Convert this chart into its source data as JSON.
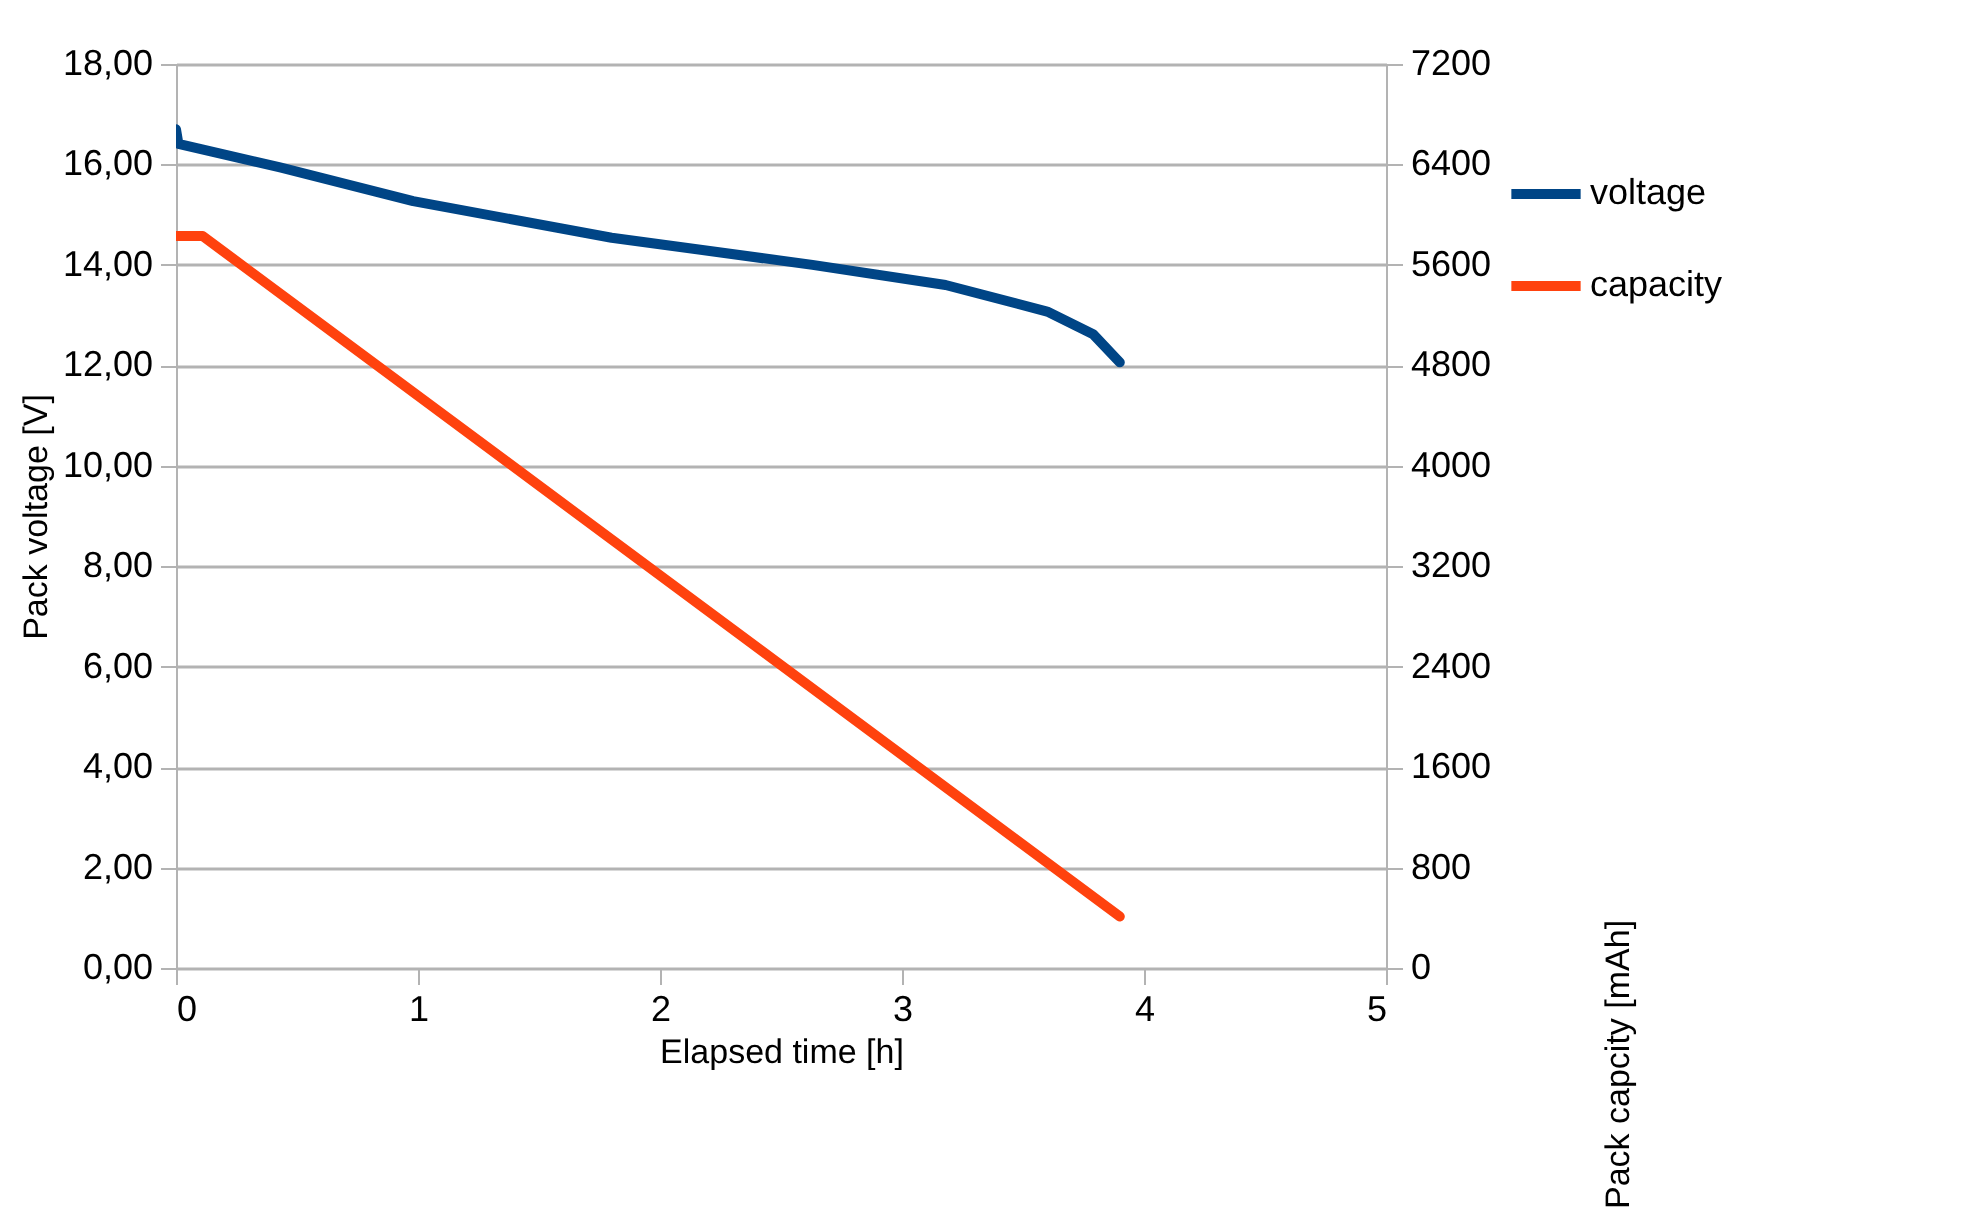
{
  "chart_data": {
    "type": "line",
    "xlabel": "Elapsed time [h]",
    "ylabel": "Pack voltage [V]",
    "y2label": "Pack capcity [mAh]",
    "xlim": [
      0,
      5
    ],
    "xticks": [
      0,
      1,
      2,
      3,
      4,
      5
    ],
    "ylim": [
      0,
      18
    ],
    "yticks": [
      {
        "value": 0,
        "label": "0,00"
      },
      {
        "value": 2,
        "label": "2,00"
      },
      {
        "value": 4,
        "label": "4,00"
      },
      {
        "value": 6,
        "label": "6,00"
      },
      {
        "value": 8,
        "label": "8,00"
      },
      {
        "value": 10,
        "label": "10,00"
      },
      {
        "value": 12,
        "label": "12,00"
      },
      {
        "value": 14,
        "label": "14,00"
      },
      {
        "value": 16,
        "label": "16,00"
      },
      {
        "value": 18,
        "label": "18,00"
      }
    ],
    "y2lim": [
      0,
      7200
    ],
    "y2ticks": [
      0,
      800,
      1600,
      2400,
      3200,
      4000,
      4800,
      5600,
      6400,
      7200
    ],
    "grid": "y",
    "legend": "right",
    "marker": "none",
    "line_style": "solid",
    "series": [
      {
        "name": "voltage",
        "color": "#004586",
        "x": [
          0,
          0.01,
          0.43,
          0.98,
          1.8,
          2.63,
          3.18,
          3.6,
          3.79,
          3.9
        ],
        "values": [
          16.7,
          16.41,
          15.94,
          15.27,
          14.54,
          14.0,
          13.6,
          13.07,
          12.62,
          12.06
        ]
      },
      {
        "name": "capacity",
        "color": "#ff420e",
        "axis": "y2",
        "x": [
          0,
          0.11,
          3.9
        ],
        "values": [
          5830,
          5830,
          410
        ]
      }
    ]
  }
}
